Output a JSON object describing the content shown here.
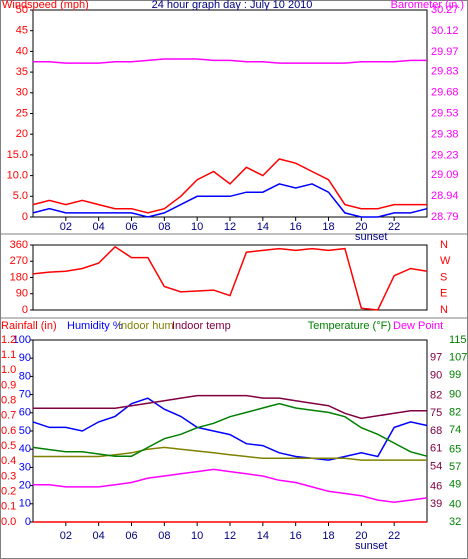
{
  "chart_data": [
    {
      "type": "line",
      "title": "24 hour graph day : July 10 2010",
      "ylabel": "Windspeed (mph)",
      "x": [
        0,
        1,
        2,
        3,
        4,
        5,
        6,
        7,
        8,
        9,
        10,
        11,
        12,
        13,
        14,
        15,
        16,
        17,
        18,
        19,
        20,
        21,
        22,
        23,
        24
      ],
      "xlim": [
        0,
        24
      ],
      "xticks": [
        {
          "value": 2,
          "label": "02"
        },
        {
          "value": 4,
          "label": "04"
        },
        {
          "value": 6,
          "label": "06"
        },
        {
          "value": 8,
          "label": "08"
        },
        10,
        12,
        14,
        16,
        18,
        20,
        22
      ],
      "ylim": [
        0,
        50
      ],
      "yticks": [
        0,
        {
          "value": 5,
          "label": "5.0"
        },
        {
          "value": 10,
          "label": "10.0"
        },
        {
          "value": 15,
          "label": "15.0"
        },
        20,
        25,
        30,
        35,
        40,
        45,
        50
      ],
      "yticks_color": "#ff0000",
      "y2lim": [
        28.79,
        30.27
      ],
      "y2ticks": [
        28.79,
        28.94,
        29.09,
        29.23,
        29.38,
        29.53,
        29.68,
        29.83,
        29.97,
        30.12,
        30.27
      ],
      "y2ticks_color": "#ff00ff",
      "annotations": [
        {
          "text": "sunset",
          "x": 20.6
        }
      ],
      "series": [
        {
          "color": "#ff0000",
          "values": [
            3,
            4,
            3,
            4,
            3,
            2,
            2,
            1,
            2,
            5,
            9,
            11,
            8,
            12,
            10,
            14,
            13,
            11,
            9,
            3,
            2,
            2,
            3,
            3,
            3
          ]
        },
        {
          "color": "#0000ff",
          "values": [
            1,
            2,
            1,
            1,
            1,
            1,
            1,
            0,
            1,
            3,
            5,
            5,
            5,
            6,
            6,
            8,
            7,
            8,
            6,
            1,
            0,
            0,
            1,
            1,
            2
          ]
        },
        {
          "name": "Barometer (in.)",
          "color": "#ff00ff",
          "axis": "y2",
          "values": [
            29.9,
            29.9,
            29.89,
            29.89,
            29.89,
            29.9,
            29.9,
            29.91,
            29.92,
            29.92,
            29.92,
            29.91,
            29.91,
            29.9,
            29.9,
            29.89,
            29.89,
            29.89,
            29.89,
            29.89,
            29.9,
            29.9,
            29.9,
            29.91,
            29.91
          ]
        }
      ]
    },
    {
      "type": "line",
      "x": [
        0,
        1,
        2,
        3,
        4,
        5,
        6,
        7,
        8,
        9,
        10,
        11,
        12,
        13,
        14,
        15,
        16,
        17,
        18,
        19,
        20,
        21,
        22,
        23,
        24
      ],
      "xlim": [
        0,
        24
      ],
      "ylim": [
        0,
        360
      ],
      "yticks": [
        0,
        90,
        180,
        270,
        360
      ],
      "yticks_color": "#ff0000",
      "y2lim": [
        0,
        360
      ],
      "y2ticks": [
        {
          "value": 0,
          "label": "N"
        },
        {
          "value": 90,
          "label": "E"
        },
        {
          "value": 180,
          "label": "S"
        },
        {
          "value": 270,
          "label": "W"
        },
        {
          "value": 360,
          "label": "N"
        }
      ],
      "y2ticks_color": "#ff0000",
      "series": [
        {
          "color": "#ff0000",
          "values": [
            200,
            210,
            215,
            230,
            260,
            350,
            290,
            290,
            130,
            100,
            105,
            110,
            80,
            320,
            330,
            340,
            330,
            340,
            330,
            340,
            10,
            0,
            190,
            230,
            215
          ]
        }
      ]
    },
    {
      "type": "line",
      "x": [
        0,
        1,
        2,
        3,
        4,
        5,
        6,
        7,
        8,
        9,
        10,
        11,
        12,
        13,
        14,
        15,
        16,
        17,
        18,
        19,
        20,
        21,
        22,
        23,
        24
      ],
      "xlim": [
        0,
        24
      ],
      "xticks": [
        {
          "value": 2,
          "label": "02"
        },
        {
          "value": 4,
          "label": "04"
        },
        {
          "value": 6,
          "label": "06"
        },
        {
          "value": 8,
          "label": "08"
        },
        10,
        12,
        14,
        16,
        18,
        20,
        22
      ],
      "ylim": [
        0,
        100
      ],
      "yticks": [
        0,
        10,
        20,
        30,
        40,
        50,
        60,
        70,
        80,
        90,
        100
      ],
      "yticks_color": "#0000ff",
      "y2lim": [
        0,
        1.2
      ],
      "y2ticks": [
        {
          "value": 0,
          "label": "0.0"
        },
        0.1,
        0.2,
        0.3,
        0.4,
        0.5,
        0.6,
        0.7,
        0.8,
        0.9,
        {
          "value": 1,
          "label": "1.0"
        },
        1.1,
        1.2
      ],
      "y2ticks_color": "#ff0000",
      "y3lim": [
        32,
        104
      ],
      "y3ticks": [
        39,
        46,
        54,
        61,
        68,
        75,
        82,
        90,
        97
      ],
      "y3ticks_color": "#800040",
      "y4lim": [
        32,
        115
      ],
      "y4ticks": [
        32,
        40,
        49,
        57,
        65,
        74,
        82,
        90,
        99,
        107,
        115
      ],
      "y4ticks_color": "#008000",
      "annotations": [
        {
          "text": "sunset",
          "x": 20.6
        }
      ],
      "series": [
        {
          "name": "Rainfall (in)",
          "color": "#ff0000",
          "axis": "y2",
          "values": [
            0,
            0,
            0,
            0,
            0,
            0,
            0,
            0,
            0,
            0,
            0,
            0,
            0,
            0,
            0,
            0,
            0,
            0,
            0,
            0,
            0,
            0,
            0,
            0,
            0
          ]
        },
        {
          "name": "Humidity %",
          "color": "#0000ff",
          "values": [
            55,
            52,
            52,
            50,
            55,
            58,
            65,
            68,
            62,
            58,
            52,
            50,
            48,
            43,
            42,
            38,
            36,
            35,
            34,
            36,
            38,
            36,
            52,
            55,
            53
          ]
        },
        {
          "name": "Indoor hum",
          "color": "#808000",
          "values": [
            36,
            36,
            36,
            36,
            36,
            37,
            38,
            40,
            41,
            40,
            39,
            38,
            37,
            36,
            35,
            35,
            35,
            35,
            35,
            35,
            34,
            34,
            34,
            34,
            34
          ]
        },
        {
          "name": "Indoor temp",
          "color": "#800040",
          "axis": "y3",
          "values": [
            77,
            77,
            77,
            77,
            77,
            77,
            78,
            79,
            80,
            81,
            82,
            82,
            82,
            82,
            81,
            81,
            80,
            79,
            78,
            75,
            73,
            74,
            75,
            76,
            76
          ]
        },
        {
          "name": "Temperature (°F)",
          "color": "#008000",
          "axis": "y4",
          "values": [
            66,
            65,
            64,
            64,
            63,
            62,
            62,
            66,
            70,
            72,
            75,
            77,
            80,
            82,
            84,
            86,
            84,
            83,
            82,
            80,
            75,
            72,
            68,
            64,
            62
          ]
        },
        {
          "name": "Dew Point",
          "color": "#ff00ff",
          "axis": "y4",
          "values": [
            49,
            49,
            48,
            48,
            48,
            49,
            50,
            52,
            53,
            54,
            55,
            56,
            55,
            54,
            53,
            51,
            50,
            48,
            46,
            45,
            44,
            42,
            41,
            42,
            43
          ]
        }
      ]
    }
  ]
}
